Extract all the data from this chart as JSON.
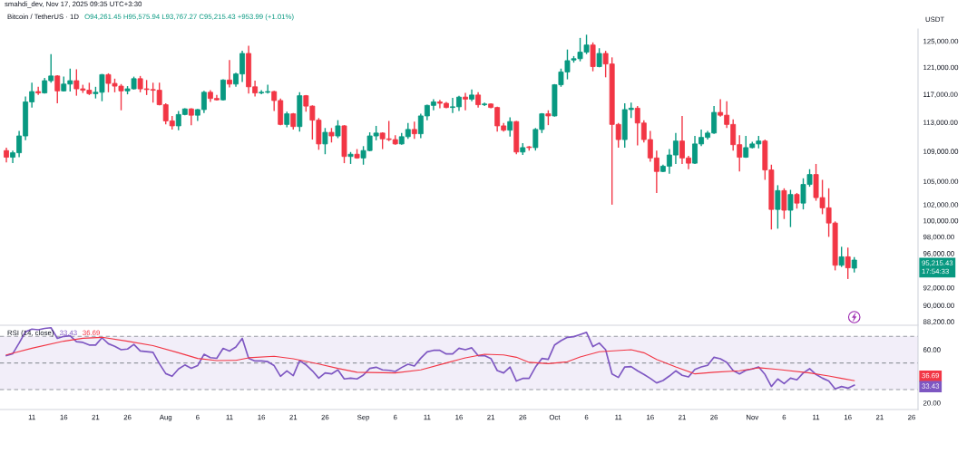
{
  "chart_data": [
    {
      "type": "candlestick",
      "title": "Bitcoin / TetherUS · 1D",
      "subtitle": "O94,261.45 H95,575.94 L93,767.27 C95,215.43 +953.99 (+1.01%)",
      "ylabel": "USDT",
      "annotations": [
        "smahdi_dev, Nov 17, 2025 09:35 UTC+3:30",
        "95,215.43\n17:54:33"
      ],
      "x": [
        "2025-07-07",
        "2025-07-08",
        "2025-07-09",
        "2025-07-10",
        "2025-07-11",
        "2025-07-12",
        "2025-07-13",
        "2025-07-14",
        "2025-07-15",
        "2025-07-16",
        "2025-07-17",
        "2025-07-18",
        "2025-07-19",
        "2025-07-20",
        "2025-07-21",
        "2025-07-22",
        "2025-07-23",
        "2025-07-24",
        "2025-07-25",
        "2025-07-26",
        "2025-07-27",
        "2025-07-28",
        "2025-07-29",
        "2025-07-30",
        "2025-07-31",
        "2025-08-01",
        "2025-08-02",
        "2025-08-03",
        "2025-08-04",
        "2025-08-05",
        "2025-08-06",
        "2025-08-07",
        "2025-08-08",
        "2025-08-09",
        "2025-08-10",
        "2025-08-11",
        "2025-08-12",
        "2025-08-13",
        "2025-08-14",
        "2025-08-15",
        "2025-08-16",
        "2025-08-17",
        "2025-08-18",
        "2025-08-19",
        "2025-08-20",
        "2025-08-21",
        "2025-08-22",
        "2025-08-23",
        "2025-08-24",
        "2025-08-25",
        "2025-08-26",
        "2025-08-27",
        "2025-08-28",
        "2025-08-29",
        "2025-08-30",
        "2025-08-31",
        "2025-09-01",
        "2025-09-02",
        "2025-09-03",
        "2025-09-04",
        "2025-09-05",
        "2025-09-06",
        "2025-09-07",
        "2025-09-08",
        "2025-09-09",
        "2025-09-10",
        "2025-09-11",
        "2025-09-12",
        "2025-09-13",
        "2025-09-14",
        "2025-09-15",
        "2025-09-16",
        "2025-09-17",
        "2025-09-18",
        "2025-09-19",
        "2025-09-20",
        "2025-09-21",
        "2025-09-22",
        "2025-09-23",
        "2025-09-24",
        "2025-09-25",
        "2025-09-26",
        "2025-09-27",
        "2025-09-28",
        "2025-09-29",
        "2025-09-30",
        "2025-10-01",
        "2025-10-02",
        "2025-10-03",
        "2025-10-04",
        "2025-10-05",
        "2025-10-06",
        "2025-10-07",
        "2025-10-08",
        "2025-10-09",
        "2025-10-10",
        "2025-10-11",
        "2025-10-12",
        "2025-10-13",
        "2025-10-14",
        "2025-10-15",
        "2025-10-16",
        "2025-10-17",
        "2025-10-18",
        "2025-10-19",
        "2025-10-20",
        "2025-10-21",
        "2025-10-22",
        "2025-10-23",
        "2025-10-24",
        "2025-10-25",
        "2025-10-26",
        "2025-10-27",
        "2025-10-28",
        "2025-10-29",
        "2025-10-30",
        "2025-10-31",
        "2025-11-01",
        "2025-11-02",
        "2025-11-03",
        "2025-11-04",
        "2025-11-05",
        "2025-11-06",
        "2025-11-07",
        "2025-11-08",
        "2025-11-09",
        "2025-11-10",
        "2025-11-11",
        "2025-11-12",
        "2025-11-13",
        "2025-11-14",
        "2025-11-15",
        "2025-11-16",
        "2025-11-17"
      ],
      "ohlc": [
        [
          109100,
          109500,
          107500,
          108200
        ],
        [
          108200,
          109100,
          107400,
          108800
        ],
        [
          108800,
          111800,
          108200,
          111100
        ],
        [
          111100,
          116700,
          110500,
          115900
        ],
        [
          115900,
          118700,
          115100,
          117400
        ],
        [
          117400,
          118100,
          116900,
          117200
        ],
        [
          117200,
          119400,
          117100,
          119000
        ],
        [
          119000,
          123000,
          118700,
          119700
        ],
        [
          119700,
          119800,
          115700,
          117500
        ],
        [
          117500,
          119600,
          117400,
          118500
        ],
        [
          118500,
          120800,
          117400,
          119000
        ],
        [
          119000,
          120700,
          116800,
          117800
        ],
        [
          117800,
          118400,
          117200,
          117600
        ],
        [
          117600,
          118700,
          116900,
          117100
        ],
        [
          117100,
          118100,
          116400,
          117300
        ],
        [
          117300,
          120000,
          116000,
          119900
        ],
        [
          119900,
          120100,
          117300,
          118600
        ],
        [
          118600,
          119300,
          117300,
          118200
        ],
        [
          118200,
          118500,
          114700,
          117500
        ],
        [
          117500,
          118200,
          117000,
          117800
        ],
        [
          117800,
          119600,
          117700,
          119300
        ],
        [
          119300,
          119700,
          117300,
          117800
        ],
        [
          117800,
          119100,
          116900,
          117700
        ],
        [
          117700,
          118700,
          115800,
          117600
        ],
        [
          117600,
          118700,
          115400,
          115500
        ],
        [
          115500,
          115700,
          112700,
          113200
        ],
        [
          113200,
          113900,
          112000,
          112500
        ],
        [
          112500,
          114600,
          111900,
          114100
        ],
        [
          114100,
          115000,
          114000,
          114900
        ],
        [
          114900,
          115000,
          112600,
          114000
        ],
        [
          114000,
          114900,
          113200,
          114800
        ],
        [
          114800,
          117500,
          114300,
          117300
        ],
        [
          117300,
          117600,
          115900,
          116400
        ],
        [
          116400,
          116900,
          116100,
          116200
        ],
        [
          116200,
          119200,
          116100,
          119100
        ],
        [
          119100,
          122100,
          118000,
          118500
        ],
        [
          118500,
          120200,
          118100,
          120000
        ],
        [
          120000,
          123500,
          118800,
          123100
        ],
        [
          123100,
          124300,
          117100,
          118100
        ],
        [
          118100,
          119000,
          116700,
          117200
        ],
        [
          117200,
          117600,
          117000,
          117300
        ],
        [
          117300,
          118400,
          117100,
          117400
        ],
        [
          117400,
          117500,
          114600,
          116100
        ],
        [
          116100,
          116400,
          112600,
          112700
        ],
        [
          112700,
          114500,
          112300,
          114200
        ],
        [
          114200,
          114300,
          112000,
          112400
        ],
        [
          112400,
          117300,
          111700,
          116800
        ],
        [
          116800,
          116900,
          114500,
          115300
        ],
        [
          115300,
          115400,
          110600,
          113300
        ],
        [
          113300,
          113600,
          109200,
          110000
        ],
        [
          110000,
          112200,
          108600,
          111600
        ],
        [
          111600,
          112200,
          110200,
          111100
        ],
        [
          111100,
          113300,
          110800,
          112500
        ],
        [
          112500,
          112600,
          107400,
          108300
        ],
        [
          108300,
          108900,
          107300,
          108600
        ],
        [
          108600,
          109300,
          108000,
          108100
        ],
        [
          108100,
          109700,
          107200,
          109100
        ],
        [
          109100,
          111600,
          109000,
          111100
        ],
        [
          111100,
          112500,
          110500,
          111500
        ],
        [
          111500,
          111600,
          109300,
          110700
        ],
        [
          110700,
          113200,
          110400,
          110600
        ],
        [
          110600,
          111200,
          109900,
          110000
        ],
        [
          110000,
          111500,
          109900,
          111000
        ],
        [
          111000,
          112900,
          110700,
          112000
        ],
        [
          112000,
          113100,
          110700,
          111400
        ],
        [
          111400,
          114200,
          110800,
          113900
        ],
        [
          113900,
          115500,
          113300,
          115400
        ],
        [
          115400,
          116300,
          114700,
          115900
        ],
        [
          115900,
          116200,
          115000,
          115700
        ],
        [
          115700,
          115900,
          115000,
          115100
        ],
        [
          115100,
          116500,
          114300,
          115200
        ],
        [
          115200,
          116800,
          114600,
          116600
        ],
        [
          116600,
          117200,
          114700,
          116300
        ],
        [
          116300,
          117700,
          116000,
          116900
        ],
        [
          116900,
          117300,
          115100,
          115500
        ],
        [
          115500,
          115800,
          115300,
          115600
        ],
        [
          115600,
          115700,
          115000,
          115100
        ],
        [
          115100,
          115200,
          111700,
          112500
        ],
        [
          112500,
          112900,
          111700,
          111900
        ],
        [
          111900,
          113700,
          111000,
          113100
        ],
        [
          113100,
          113200,
          108600,
          108900
        ],
        [
          108900,
          110100,
          108500,
          109500
        ],
        [
          109600,
          109700,
          109100,
          109500
        ],
        [
          109500,
          112200,
          109100,
          112000
        ],
        [
          112000,
          114300,
          111500,
          114200
        ],
        [
          114200,
          114700,
          112600,
          113900
        ],
        [
          113900,
          118500,
          113800,
          118400
        ],
        [
          118400,
          120800,
          118100,
          120300
        ],
        [
          120300,
          123700,
          119200,
          122000
        ],
        [
          122100,
          122700,
          121700,
          122300
        ],
        [
          122300,
          125500,
          121900,
          123300
        ],
        [
          123300,
          126000,
          123000,
          124400
        ],
        [
          124400,
          124800,
          120400,
          121100
        ],
        [
          121100,
          123900,
          121000,
          123100
        ],
        [
          123100,
          123500,
          119500,
          121500
        ],
        [
          121500,
          122500,
          102000,
          112700
        ],
        [
          112700,
          112900,
          109500,
          110600
        ],
        [
          110600,
          115700,
          109500,
          114800
        ],
        [
          114800,
          115800,
          113600,
          115000
        ],
        [
          115000,
          115300,
          109800,
          112900
        ],
        [
          112900,
          113300,
          110200,
          110600
        ],
        [
          110600,
          111800,
          107600,
          108100
        ],
        [
          108100,
          109100,
          103500,
          106300
        ],
        [
          106300,
          107200,
          106200,
          107000
        ],
        [
          107000,
          109300,
          106000,
          108500
        ],
        [
          108500,
          111500,
          107300,
          110400
        ],
        [
          110400,
          113900,
          107300,
          108100
        ],
        [
          108100,
          108400,
          106600,
          107400
        ],
        [
          107400,
          111100,
          107300,
          110000
        ],
        [
          110000,
          112000,
          109700,
          110900
        ],
        [
          110900,
          111800,
          110600,
          111500
        ],
        [
          111500,
          115300,
          111400,
          114400
        ],
        [
          114400,
          116300,
          113800,
          114000
        ],
        [
          114000,
          116000,
          112200,
          112700
        ],
        [
          112700,
          113400,
          109100,
          109900
        ],
        [
          109900,
          111200,
          106300,
          108200
        ],
        [
          108200,
          111100,
          108100,
          109500
        ],
        [
          109500,
          110300,
          109400,
          110000
        ],
        [
          110000,
          111100,
          109400,
          110400
        ],
        [
          110400,
          110600,
          105200,
          106500
        ],
        [
          106500,
          107200,
          98900,
          101400
        ],
        [
          101400,
          104500,
          99000,
          103800
        ],
        [
          103800,
          104100,
          100200,
          101300
        ],
        [
          101300,
          103900,
          99200,
          103300
        ],
        [
          103300,
          103500,
          101500,
          102200
        ],
        [
          102200,
          105400,
          101400,
          104600
        ],
        [
          104600,
          106600,
          104300,
          105900
        ],
        [
          105900,
          107300,
          102500,
          102900
        ],
        [
          102900,
          105200,
          100800,
          101600
        ],
        [
          101600,
          104100,
          98000,
          99700
        ],
        [
          99700,
          99900,
          94000,
          94600
        ],
        [
          94600,
          96800,
          94400,
          95600
        ],
        [
          95600,
          96700,
          93000,
          94300
        ],
        [
          94261.45,
          95575.94,
          93767.27,
          95215.43
        ]
      ],
      "colors": [
        "#f23645",
        "#089981",
        "#089981",
        "#089981",
        "#089981",
        "#f23645",
        "#089981",
        "#089981",
        "#f23645",
        "#089981",
        "#089981",
        "#f23645",
        "#f23645",
        "#f23645",
        "#089981",
        "#089981",
        "#f23645",
        "#f23645",
        "#f23645",
        "#089981",
        "#089981",
        "#f23645",
        "#f23645",
        "#f23645",
        "#f23645",
        "#f23645",
        "#f23645",
        "#089981",
        "#089981",
        "#f23645",
        "#089981",
        "#089981",
        "#f23645",
        "#f23645",
        "#089981",
        "#f23645",
        "#089981",
        "#089981",
        "#f23645",
        "#f23645",
        "#089981",
        "#089981",
        "#f23645",
        "#f23645",
        "#089981",
        "#f23645",
        "#089981",
        "#f23645",
        "#f23645",
        "#f23645",
        "#089981",
        "#f23645",
        "#089981",
        "#f23645",
        "#089981",
        "#f23645",
        "#089981",
        "#089981",
        "#089981",
        "#f23645",
        "#f23645",
        "#f23645",
        "#089981",
        "#089981",
        "#f23645",
        "#089981",
        "#089981",
        "#089981",
        "#f23645",
        "#f23645",
        "#089981",
        "#089981",
        "#f23645",
        "#089981",
        "#f23645",
        "#089981",
        "#f23645",
        "#f23645",
        "#f23645",
        "#089981",
        "#f23645",
        "#089981",
        "#f23645",
        "#089981",
        "#089981",
        "#f23645",
        "#089981",
        "#089981",
        "#089981",
        "#089981",
        "#089981",
        "#089981",
        "#f23645",
        "#089981",
        "#f23645",
        "#f23645",
        "#f23645",
        "#089981",
        "#089981",
        "#f23645",
        "#f23645",
        "#f23645",
        "#f23645",
        "#089981",
        "#089981",
        "#089981",
        "#f23645",
        "#f23645",
        "#089981",
        "#089981",
        "#089981",
        "#089981",
        "#f23645",
        "#f23645",
        "#f23645",
        "#f23645",
        "#089981",
        "#089981",
        "#089981",
        "#f23645",
        "#f23645",
        "#089981",
        "#f23645",
        "#089981",
        "#f23645",
        "#089981",
        "#089981",
        "#f23645",
        "#f23645",
        "#f23645",
        "#f23645",
        "#089981",
        "#f23645",
        "#089981"
      ],
      "log": true,
      "xlim": [
        "2025-07-06",
        "2025-11-27"
      ],
      "ylim": [
        87800,
        126900
      ],
      "yticks": [
        {
          "value": 125000,
          "label": "125,000.00"
        },
        {
          "value": 121000,
          "label": "121,000.00"
        },
        {
          "value": 117000,
          "label": "117,000.00"
        },
        {
          "value": 113000,
          "label": "113,000.00"
        },
        {
          "value": 109000,
          "label": "109,000.00"
        },
        {
          "value": 105000,
          "label": "105,000.00"
        },
        {
          "value": 102000,
          "label": "102,000.00"
        },
        {
          "value": 100000,
          "label": "100,000.00"
        },
        {
          "value": 98000,
          "label": "98,000.00"
        },
        {
          "value": 96000,
          "label": "96,000.00"
        },
        {
          "value": 92000,
          "label": "92,000.00"
        },
        {
          "value": 90000,
          "label": "90,000.00"
        },
        {
          "value": 88200,
          "label": "88,200.00"
        }
      ],
      "tick_labels": "y"
    },
    {
      "type": "line",
      "title": "RSI (14, close)",
      "annotations": [
        "33.43",
        "36.69"
      ],
      "x": [
        "2025-07-07",
        "2025-07-08",
        "2025-07-09",
        "2025-07-10",
        "2025-07-11",
        "2025-07-12",
        "2025-07-13",
        "2025-07-14",
        "2025-07-15",
        "2025-07-16",
        "2025-07-17",
        "2025-07-18",
        "2025-07-19",
        "2025-07-20",
        "2025-07-21",
        "2025-07-22",
        "2025-07-23",
        "2025-07-24",
        "2025-07-25",
        "2025-07-26",
        "2025-07-27",
        "2025-07-28",
        "2025-07-29",
        "2025-07-30",
        "2025-07-31",
        "2025-08-01",
        "2025-08-02",
        "2025-08-03",
        "2025-08-04",
        "2025-08-05",
        "2025-08-06",
        "2025-08-07",
        "2025-08-08",
        "2025-08-09",
        "2025-08-10",
        "2025-08-11",
        "2025-08-12",
        "2025-08-13",
        "2025-08-14",
        "2025-08-15",
        "2025-08-16",
        "2025-08-17",
        "2025-08-18",
        "2025-08-19",
        "2025-08-20",
        "2025-08-21",
        "2025-08-22",
        "2025-08-23",
        "2025-08-24",
        "2025-08-25",
        "2025-08-26",
        "2025-08-27",
        "2025-08-28",
        "2025-08-29",
        "2025-08-30",
        "2025-08-31",
        "2025-09-01",
        "2025-09-02",
        "2025-09-03",
        "2025-09-04",
        "2025-09-05",
        "2025-09-06",
        "2025-09-07",
        "2025-09-08",
        "2025-09-09",
        "2025-09-10",
        "2025-09-11",
        "2025-09-12",
        "2025-09-13",
        "2025-09-14",
        "2025-09-15",
        "2025-09-16",
        "2025-09-17",
        "2025-09-18",
        "2025-09-19",
        "2025-09-20",
        "2025-09-21",
        "2025-09-22",
        "2025-09-23",
        "2025-09-24",
        "2025-09-25",
        "2025-09-26",
        "2025-09-27",
        "2025-09-28",
        "2025-09-29",
        "2025-09-30",
        "2025-10-01",
        "2025-10-02",
        "2025-10-03",
        "2025-10-04",
        "2025-10-05",
        "2025-10-06",
        "2025-10-07",
        "2025-10-08",
        "2025-10-09",
        "2025-10-10",
        "2025-10-11",
        "2025-10-12",
        "2025-10-13",
        "2025-10-14",
        "2025-10-15",
        "2025-10-16",
        "2025-10-17",
        "2025-10-18",
        "2025-10-19",
        "2025-10-20",
        "2025-10-21",
        "2025-10-22",
        "2025-10-23",
        "2025-10-24",
        "2025-10-25",
        "2025-10-26",
        "2025-10-27",
        "2025-10-28",
        "2025-10-29",
        "2025-10-30",
        "2025-10-31",
        "2025-11-01",
        "2025-11-02",
        "2025-11-03",
        "2025-11-04",
        "2025-11-05",
        "2025-11-06",
        "2025-11-07",
        "2025-11-08",
        "2025-11-09",
        "2025-11-10",
        "2025-11-11",
        "2025-11-12",
        "2025-11-13",
        "2025-11-14",
        "2025-11-15",
        "2025-11-16",
        "2025-11-17"
      ],
      "series": [
        {
          "color": "#7e57c2",
          "values": [
            55.5,
            57.0,
            65.0,
            73.5,
            75.5,
            75.0,
            76.0,
            76.5,
            68.5,
            70.0,
            70.5,
            66.0,
            65.5,
            63.5,
            63.5,
            69.0,
            64.5,
            62.5,
            60.0,
            60.5,
            64.0,
            59.0,
            58.5,
            58.0,
            49.5,
            42.0,
            40.0,
            45.5,
            48.5,
            46.0,
            48.0,
            56.5,
            54.0,
            53.5,
            61.0,
            59.0,
            62.0,
            68.5,
            53.5,
            51.5,
            51.5,
            51.0,
            48.0,
            40.0,
            44.0,
            40.5,
            51.8,
            48.6,
            44.1,
            38.6,
            42.5,
            41.8,
            44.8,
            38.0,
            38.6,
            38.0,
            40.9,
            45.9,
            46.8,
            44.8,
            44.5,
            43.6,
            46.6,
            49.1,
            47.7,
            53.6,
            58.4,
            59.5,
            59.5,
            56.8,
            56.8,
            61.1,
            60.0,
            61.4,
            55.5,
            55.5,
            53.4,
            44.3,
            42.5,
            47.0,
            36.4,
            38.4,
            38.4,
            47.0,
            53.4,
            52.7,
            63.6,
            66.8,
            69.3,
            69.8,
            71.4,
            73.0,
            62.3,
            65.0,
            60.0,
            41.8,
            39.1,
            47.0,
            47.3,
            44.1,
            41.4,
            38.4,
            35.0,
            36.8,
            40.2,
            44.1,
            40.7,
            39.5,
            45.2,
            47.0,
            48.2,
            54.3,
            53.2,
            50.5,
            44.3,
            41.8,
            44.5,
            45.5,
            47.0,
            41.4,
            32.3,
            38.0,
            34.5,
            38.6,
            37.3,
            42.5,
            45.7,
            41.4,
            38.6,
            36.4,
            30.5,
            32.3,
            31.1,
            33.4
          ]
        },
        {
          "color": "#f23645",
          "x": [
            "2025-07-07",
            "2025-07-11",
            "2025-07-16",
            "2025-07-19",
            "2025-07-22",
            "2025-07-26",
            "2025-07-30",
            "2025-08-03",
            "2025-08-06",
            "2025-08-09",
            "2025-08-12",
            "2025-08-14",
            "2025-08-18",
            "2025-08-21",
            "2025-08-25",
            "2025-08-28",
            "2025-08-31",
            "2025-09-06",
            "2025-09-10",
            "2025-09-14",
            "2025-09-17",
            "2025-09-20",
            "2025-09-23",
            "2025-09-25",
            "2025-09-27",
            "2025-09-30",
            "2025-10-03",
            "2025-10-05",
            "2025-10-08",
            "2025-10-13",
            "2025-10-15",
            "2025-10-17",
            "2025-10-20",
            "2025-10-23",
            "2025-10-26",
            "2025-10-30",
            "2025-11-02",
            "2025-11-05",
            "2025-11-10",
            "2025-11-13",
            "2025-11-15",
            "2025-11-17"
          ],
          "values": [
            56.1,
            61.1,
            66.4,
            68.6,
            69.3,
            66.4,
            63.0,
            57.7,
            53.4,
            51.8,
            52.0,
            53.9,
            55.0,
            53.2,
            49.3,
            45.9,
            43.0,
            42.5,
            44.8,
            50.0,
            53.9,
            56.6,
            56.1,
            54.3,
            50.5,
            49.5,
            50.9,
            54.5,
            58.4,
            60.0,
            57.7,
            52.7,
            47.0,
            41.8,
            43.0,
            44.1,
            46.4,
            45.2,
            42.5,
            40.2,
            38.4,
            36.7
          ]
        }
      ],
      "xlim": [
        "2025-07-06",
        "2025-11-27"
      ],
      "ylim": [
        15,
        77.7
      ],
      "xticks": [
        {
          "value": "2025-07-11",
          "label": "11"
        },
        {
          "value": "2025-07-16",
          "label": "16"
        },
        {
          "value": "2025-07-21",
          "label": "21"
        },
        {
          "value": "2025-07-26",
          "label": "26"
        },
        {
          "value": "2025-08-01",
          "label": "Aug"
        },
        {
          "value": "2025-08-06",
          "label": "6"
        },
        {
          "value": "2025-08-11",
          "label": "11"
        },
        {
          "value": "2025-08-16",
          "label": "16"
        },
        {
          "value": "2025-08-21",
          "label": "21"
        },
        {
          "value": "2025-08-26",
          "label": "26"
        },
        {
          "value": "2025-09-01",
          "label": "Sep"
        },
        {
          "value": "2025-09-06",
          "label": "6"
        },
        {
          "value": "2025-09-11",
          "label": "11"
        },
        {
          "value": "2025-09-16",
          "label": "16"
        },
        {
          "value": "2025-09-21",
          "label": "21"
        },
        {
          "value": "2025-09-26",
          "label": "26"
        },
        {
          "value": "2025-10-01",
          "label": "Oct"
        },
        {
          "value": "2025-10-06",
          "label": "6"
        },
        {
          "value": "2025-10-11",
          "label": "11"
        },
        {
          "value": "2025-10-16",
          "label": "16"
        },
        {
          "value": "2025-10-21",
          "label": "21"
        },
        {
          "value": "2025-10-26",
          "label": "26"
        },
        {
          "value": "2025-11-01",
          "label": "Nov"
        },
        {
          "value": "2025-11-06",
          "label": "6"
        },
        {
          "value": "2025-11-11",
          "label": "11"
        },
        {
          "value": "2025-11-16",
          "label": "16"
        },
        {
          "value": "2025-11-21",
          "label": "21"
        },
        {
          "value": "2025-11-26",
          "label": "26"
        }
      ],
      "yticks": [
        {
          "value": 60,
          "label": "60.00"
        },
        {
          "value": 20,
          "label": "20.00"
        }
      ],
      "ref_lines": [
        {
          "axis": "y",
          "value": 70,
          "color": "#9598a1",
          "line_style": "dashed"
        },
        {
          "axis": "y",
          "value": 50,
          "color": "#9598a1",
          "line_style": "dashed"
        },
        {
          "axis": "y",
          "value": 30,
          "color": "#9598a1",
          "line_style": "dashed"
        }
      ],
      "bands": [
        {
          "axis": "y",
          "from": 30,
          "to": 70,
          "color": "#f2eef9"
        }
      ]
    }
  ]
}
